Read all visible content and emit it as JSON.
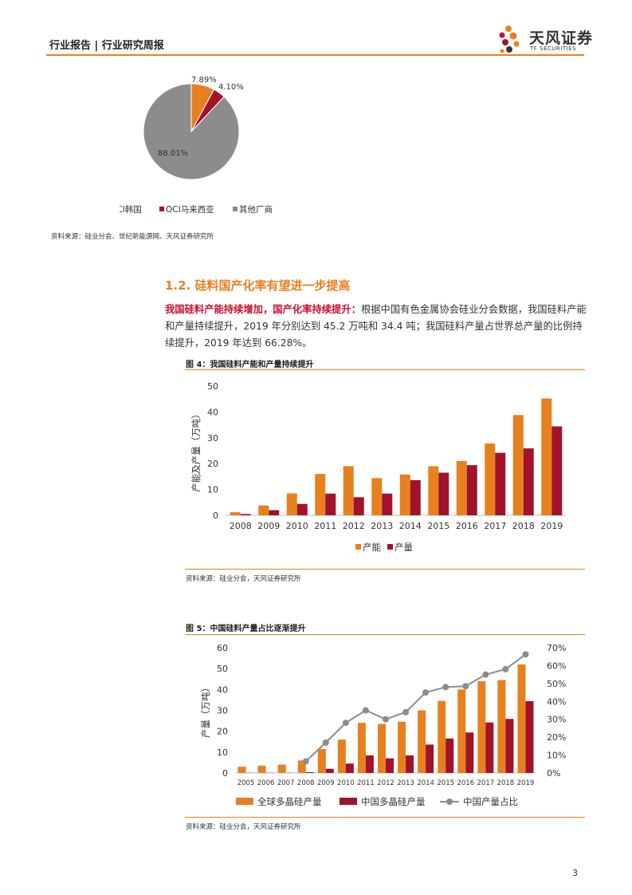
{
  "header": {
    "title": "行业报告 | 行业研究周报",
    "logo_cn": "天风证券",
    "logo_en": "TF SECURITIES"
  },
  "pie": {
    "chart_data": {
      "type": "pie",
      "slices": [
        {
          "label": "OCI韩国",
          "value": 7.89,
          "display": "7.89%",
          "color": "#e8801f"
        },
        {
          "label": "OCI马来西亚",
          "value": 4.1,
          "display": "4.10%",
          "color": "#a1132b"
        },
        {
          "label": "其他厂商",
          "value": 88.01,
          "display": "88.01%",
          "color": "#8c8c8c"
        }
      ]
    },
    "source": "资料来源：硅业分会、世纪新能源网、天风证券研究所"
  },
  "section": {
    "title": "1.2. 硅料国产化率有望进一步提高",
    "lead": "我国硅料产能持续增加，国产化率持续提升：",
    "body": "根据中国有色金属协会硅业分会数据，我国硅料产能和产量持续提升，2019 年分别达到 45.2 万吨和 34.4 吨；我国硅料产量占世界总产量的比例持续提升，2019 年达到 66.28%。"
  },
  "fig4": {
    "title": "图 4：我国硅料产能和产量持续提升",
    "source": "资料来源：硅业分会，天风证券研究所",
    "chart_data": {
      "type": "bar",
      "categories": [
        "2008",
        "2009",
        "2010",
        "2011",
        "2012",
        "2013",
        "2014",
        "2015",
        "2016",
        "2017",
        "2018",
        "2019"
      ],
      "series": [
        {
          "name": "产能",
          "color": "#e8801f",
          "values": [
            1.2,
            3.8,
            8.5,
            16,
            19,
            14.4,
            15.8,
            19,
            21,
            27.8,
            38.8,
            45.2
          ]
        },
        {
          "name": "产量",
          "color": "#a1132b",
          "values": [
            0.5,
            2,
            4.4,
            8.4,
            7,
            8.4,
            13.6,
            16.5,
            19.4,
            24.2,
            25.9,
            34.4
          ]
        }
      ],
      "ylabel": "产能及产量（万吨）",
      "ylim": [
        0,
        50
      ],
      "yticks": [
        0,
        10,
        20,
        30,
        40,
        50
      ]
    }
  },
  "fig5": {
    "title": "图 5：中国硅料产量占比逐渐提升",
    "source": "资料来源：硅业分会，天风证券研究所",
    "chart_data": {
      "type": "bar",
      "categories": [
        "2005",
        "2006",
        "2007",
        "2008",
        "2009",
        "2010",
        "2011",
        "2012",
        "2013",
        "2014",
        "2015",
        "2016",
        "2017",
        "2018",
        "2019"
      ],
      "series": [
        {
          "name": "全球多晶硅产量",
          "type": "bar",
          "axis": "left",
          "color": "#e8801f",
          "values": [
            3,
            3.5,
            4,
            6,
            11.5,
            16,
            24,
            23.5,
            24.5,
            30,
            34.5,
            40,
            44,
            44.5,
            52
          ]
        },
        {
          "name": "中国多晶硅产量",
          "type": "bar",
          "axis": "left",
          "color": "#a1132b",
          "values": [
            0.1,
            0.1,
            0.1,
            0.4,
            2,
            4.5,
            8.4,
            7,
            8.4,
            13.6,
            16.5,
            19.4,
            24.2,
            25.9,
            34.4
          ]
        },
        {
          "name": "中国产量占比",
          "type": "line",
          "axis": "right",
          "color": "#8c8c8c",
          "values": [
            null,
            null,
            null,
            6.5,
            17,
            28,
            35,
            30,
            34,
            45,
            48,
            48.5,
            55,
            58,
            66.28
          ]
        }
      ],
      "ylabel": "产量（万吨）",
      "ylim": [
        0,
        60
      ],
      "yticks": [
        0,
        10,
        20,
        30,
        40,
        50,
        60
      ],
      "y2lim": [
        0,
        70
      ],
      "y2ticks": [
        "0%",
        "10%",
        "20%",
        "30%",
        "40%",
        "50%",
        "60%",
        "70%"
      ]
    }
  },
  "page_number": "3"
}
